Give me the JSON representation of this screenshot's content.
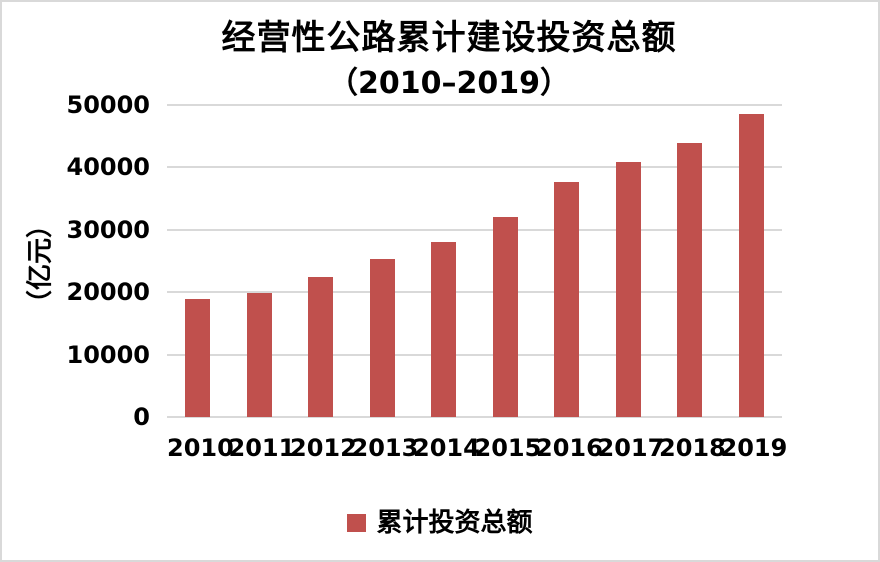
{
  "chart_data": {
    "type": "bar",
    "title": "经营性公路累计建设投资总额",
    "subtitle": "（2010–2019）",
    "ylabel": "（亿元）",
    "xlabel": "",
    "categories": [
      "2010",
      "2011",
      "2012",
      "2013",
      "2014",
      "2015",
      "2016",
      "2017",
      "2018",
      "2019"
    ],
    "series": [
      {
        "name": "累计投资总额",
        "values": [
          18900,
          19900,
          22400,
          25300,
          28000,
          32000,
          37600,
          40800,
          43900,
          48500
        ]
      }
    ],
    "ylim": [
      0,
      50000
    ],
    "yticks": [
      0,
      10000,
      20000,
      30000,
      40000,
      50000
    ],
    "grid": true,
    "legend_position": "bottom",
    "colors": {
      "bar": "#c0504d",
      "grid": "#d9d9d9",
      "axis": "#d9d9d9",
      "text": "#000000",
      "background": "#ffffff",
      "frame_border": "#d9d9d9"
    }
  }
}
